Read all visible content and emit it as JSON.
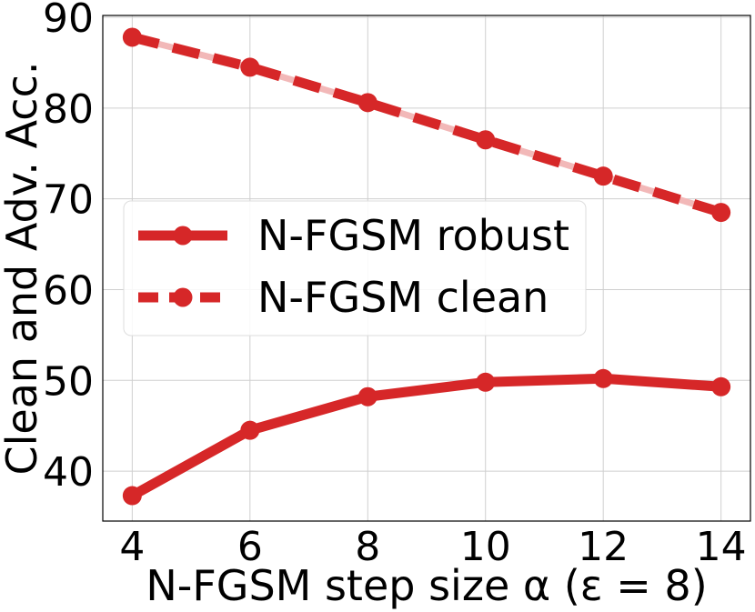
{
  "chart_data": {
    "type": "line",
    "title": "",
    "xlabel": "N-FGSM step size α (ε = 8)",
    "ylabel": "Clean and Adv. Acc.",
    "x": [
      4,
      6,
      8,
      10,
      12,
      14
    ],
    "x_ticks": [
      "4",
      "6",
      "8",
      "10",
      "12",
      "14"
    ],
    "y_ticks": [
      "40",
      "50",
      "60",
      "70",
      "80",
      "90"
    ],
    "xlim": [
      3.5,
      14.5
    ],
    "ylim": [
      34.5,
      90.2
    ],
    "grid": true,
    "legend_position": "center-left",
    "series": [
      {
        "name": "N-FGSM robust",
        "style": "solid",
        "color": "#d62728",
        "values": [
          37.3,
          44.5,
          48.2,
          49.8,
          50.2,
          49.3
        ]
      },
      {
        "name": "N-FGSM clean",
        "style": "dashed",
        "color": "#d62728",
        "values": [
          87.8,
          84.5,
          80.6,
          76.5,
          72.5,
          68.5
        ]
      }
    ]
  }
}
